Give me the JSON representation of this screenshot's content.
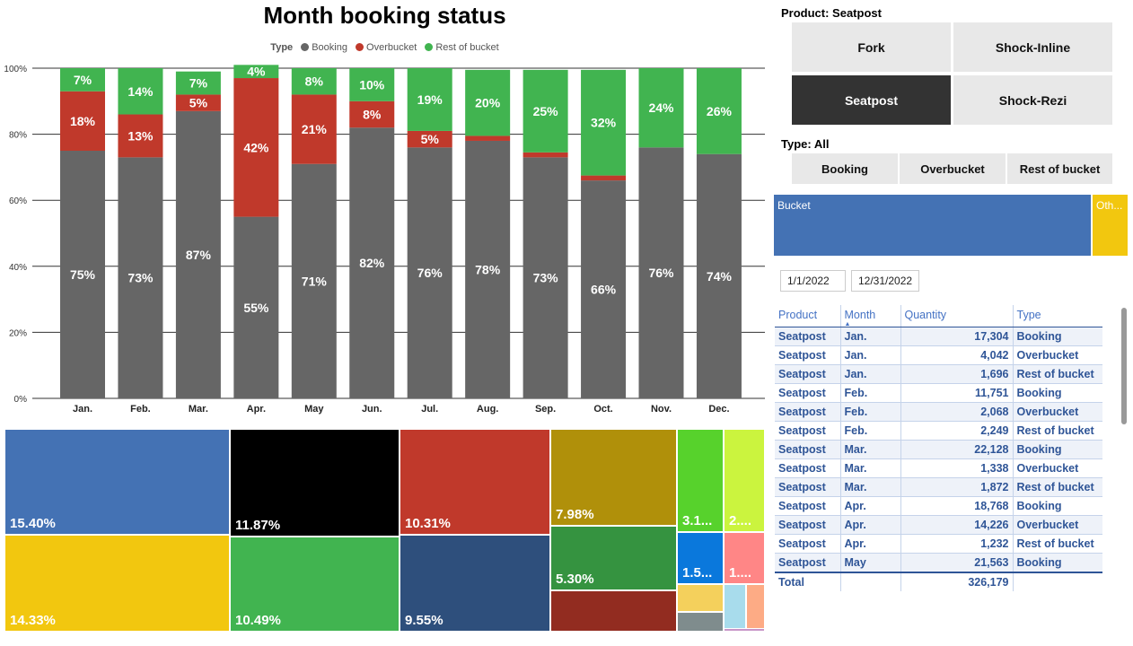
{
  "chart_data": [
    {
      "type": "bar",
      "stacked": true,
      "title": "Month booking status",
      "legend": {
        "title": "Type",
        "position": "top-center"
      },
      "categories": [
        "Jan.",
        "Feb.",
        "Mar.",
        "Apr.",
        "May",
        "Jun.",
        "Jul.",
        "Aug.",
        "Sep.",
        "Oct.",
        "Nov.",
        "Dec."
      ],
      "series": [
        {
          "name": "Booking",
          "color": "#666666",
          "values": [
            75,
            73,
            87,
            55,
            71,
            82,
            76,
            78,
            73,
            66,
            76,
            74
          ],
          "labels": [
            "75%",
            "73%",
            "87%",
            "55%",
            "71%",
            "82%",
            "76%",
            "78%",
            "73%",
            "66%",
            "76%",
            "74%"
          ]
        },
        {
          "name": "Overbucket",
          "color": "#c0392b",
          "values": [
            18,
            13,
            5,
            42,
            21,
            8,
            5,
            1.5,
            1.5,
            1.5,
            0,
            0
          ],
          "labels": [
            "18%",
            "13%",
            "5%",
            "42%",
            "21%",
            "8%",
            "5%",
            "",
            "",
            "",
            "",
            ""
          ]
        },
        {
          "name": "Rest of bucket",
          "color": "#41b450",
          "values": [
            7,
            14,
            7,
            4,
            8,
            10,
            19,
            20,
            25,
            32,
            24,
            26
          ],
          "labels": [
            "7%",
            "14%",
            "7%",
            "4%",
            "8%",
            "10%",
            "19%",
            "20%",
            "25%",
            "32%",
            "24%",
            "26%"
          ]
        }
      ],
      "ylim": [
        0,
        100
      ],
      "yticks": [
        "0%",
        "20%",
        "40%",
        "60%",
        "80%",
        "100%"
      ],
      "grid": true
    },
    {
      "type": "treemap",
      "tiles": [
        {
          "label": "15.40%",
          "value": 15.4,
          "color": "#4472b4"
        },
        {
          "label": "14.33%",
          "value": 14.33,
          "color": "#f2c70f"
        },
        {
          "label": "11.87%",
          "value": 11.87,
          "color": "#000000"
        },
        {
          "label": "10.49%",
          "value": 10.49,
          "color": "#41b450"
        },
        {
          "label": "10.31%",
          "value": 10.31,
          "color": "#c0392b"
        },
        {
          "label": "9.55%",
          "value": 9.55,
          "color": "#2e4f7c"
        },
        {
          "label": "7.98%",
          "value": 7.98,
          "color": "#b0900a"
        },
        {
          "label": "5.30%",
          "value": 5.3,
          "color": "#359340"
        },
        {
          "label": "",
          "color": "#922c20"
        },
        {
          "label": "3.1...",
          "color": "#57d22c"
        },
        {
          "label": "2....",
          "color": "#cbf43e"
        },
        {
          "label": "1.5...",
          "color": "#0a78dc"
        },
        {
          "label": "1....",
          "color": "#ff8686"
        },
        {
          "label": "",
          "color": "#f4d05c"
        },
        {
          "label": "",
          "color": "#a8dcec"
        },
        {
          "label": "",
          "color": "#fdab85"
        },
        {
          "label": "",
          "color": "#7f8c8d"
        },
        {
          "label": "",
          "color": "#c896c8"
        }
      ]
    }
  ],
  "product_slicer": {
    "title": "Product: Seatpost",
    "options": [
      "Fork",
      "Shock-Inline",
      "Seatpost",
      "Shock-Rezi"
    ],
    "selected": "Seatpost"
  },
  "type_slicer": {
    "title": "Type: All",
    "options": [
      "Booking",
      "Overbucket",
      "Rest of bucket"
    ]
  },
  "bucket_bar": {
    "segments": [
      {
        "label": "Bucket",
        "color": "#4472b4"
      },
      {
        "label": "Oth...",
        "color": "#f2c70f"
      }
    ]
  },
  "date_range": {
    "start": "1/1/2022",
    "end": "12/31/2022"
  },
  "table": {
    "columns": [
      "Product",
      "Month",
      "Quantity",
      "Type"
    ],
    "rows": [
      [
        "Seatpost",
        "Jan.",
        "17,304",
        "Booking"
      ],
      [
        "Seatpost",
        "Jan.",
        "4,042",
        "Overbucket"
      ],
      [
        "Seatpost",
        "Jan.",
        "1,696",
        "Rest of bucket"
      ],
      [
        "Seatpost",
        "Feb.",
        "11,751",
        "Booking"
      ],
      [
        "Seatpost",
        "Feb.",
        "2,068",
        "Overbucket"
      ],
      [
        "Seatpost",
        "Feb.",
        "2,249",
        "Rest of bucket"
      ],
      [
        "Seatpost",
        "Mar.",
        "22,128",
        "Booking"
      ],
      [
        "Seatpost",
        "Mar.",
        "1,338",
        "Overbucket"
      ],
      [
        "Seatpost",
        "Mar.",
        "1,872",
        "Rest of bucket"
      ],
      [
        "Seatpost",
        "Apr.",
        "18,768",
        "Booking"
      ],
      [
        "Seatpost",
        "Apr.",
        "14,226",
        "Overbucket"
      ],
      [
        "Seatpost",
        "Apr.",
        "1,232",
        "Rest of bucket"
      ],
      [
        "Seatpost",
        "May",
        "21,563",
        "Booking"
      ]
    ],
    "total_label": "Total",
    "total_value": "326,179"
  }
}
